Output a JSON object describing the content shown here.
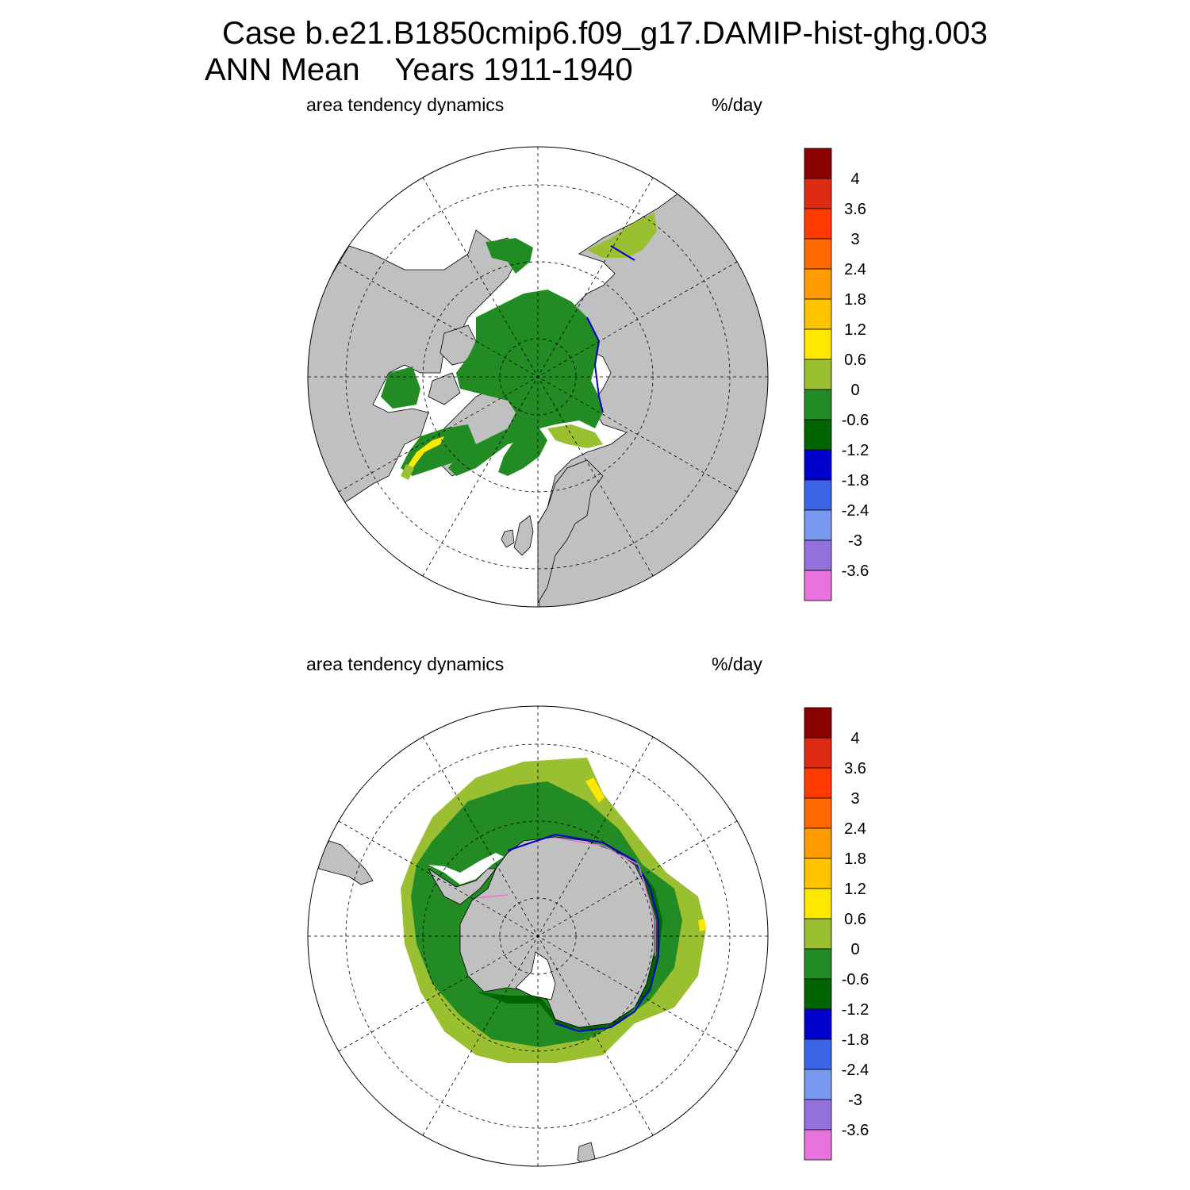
{
  "title": {
    "line1": "Case b.e21.B1850cmip6.f09_g17.DAMIP-hist-ghg.003",
    "line2": "ANN Mean    Years 1911-1940"
  },
  "panels": [
    {
      "id": "north",
      "hemisphere": "north",
      "variable": "area tendency dynamics",
      "units": "%/day"
    },
    {
      "id": "south",
      "hemisphere": "south",
      "variable": "area tendency dynamics",
      "units": "%/day"
    }
  ],
  "colorbar": {
    "labels": [
      "4",
      "3.6",
      "3",
      "2.4",
      "1.8",
      "1.2",
      "0.6",
      "0",
      "-0.6",
      "-1.2",
      "-1.8",
      "-2.4",
      "-3",
      "-3.6"
    ],
    "colors_top_to_bottom": [
      "#8b0000",
      "#dd2a12",
      "#ff3a00",
      "#ff6a00",
      "#ff9a00",
      "#ffc400",
      "#ffe800",
      "#9abf30",
      "#238b23",
      "#006400",
      "#0000cd",
      "#3c64e6",
      "#7898f0",
      "#9370db",
      "#e872de"
    ]
  },
  "colors": {
    "land": "#c0c0c0",
    "ocean": "#ffffff",
    "ice_low": "#238b23",
    "ice_edge": "#9abf30",
    "ice_dark": "#006400",
    "coast_blue": "#0000cd",
    "yellow": "#ffe800",
    "pink": "#e872de"
  }
}
